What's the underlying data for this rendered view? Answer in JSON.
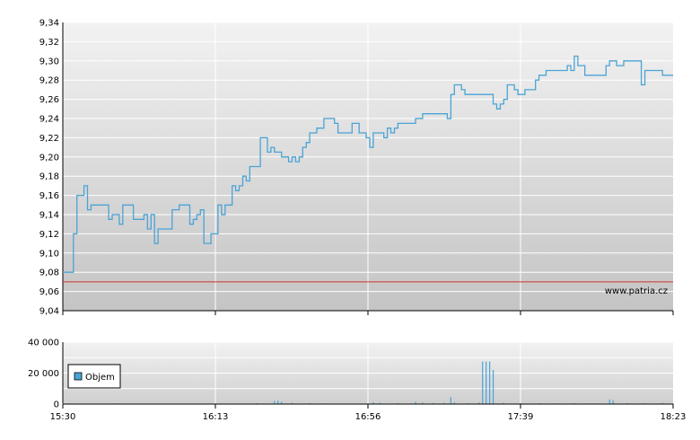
{
  "watermark": "www.patria.cz",
  "colors": {
    "price_line": "#4aa3d6",
    "reference_line": "#cc3333",
    "volume_bars": "#4aa3d6",
    "grid": "#ffffff",
    "plot_top": "#f0f0f0",
    "plot_bottom": "#c8c8c8"
  },
  "chart_data": [
    {
      "type": "line",
      "name": "price-chart",
      "ylim": [
        9.04,
        9.34
      ],
      "xlim": [
        "15:30",
        "18:23"
      ],
      "y_ticks": [
        "9,04",
        "9,06",
        "9,08",
        "9,10",
        "9,12",
        "9,14",
        "9,16",
        "9,18",
        "9,20",
        "9,22",
        "9,24",
        "9,26",
        "9,28",
        "9,30",
        "9,32",
        "9,34"
      ],
      "reference_value": 9.07,
      "grid": true,
      "series": [
        {
          "values_time_minutes": [
            [
              0,
              9.08
            ],
            [
              2,
              9.08
            ],
            [
              3,
              9.12
            ],
            [
              4,
              9.16
            ],
            [
              5,
              9.16
            ],
            [
              6,
              9.17
            ],
            [
              7,
              9.145
            ],
            [
              8,
              9.15
            ],
            [
              12,
              9.15
            ],
            [
              13,
              9.135
            ],
            [
              14,
              9.14
            ],
            [
              15,
              9.14
            ],
            [
              16,
              9.13
            ],
            [
              17,
              9.15
            ],
            [
              19,
              9.15
            ],
            [
              20,
              9.135
            ],
            [
              23,
              9.14
            ],
            [
              24,
              9.125
            ],
            [
              25,
              9.14
            ],
            [
              26,
              9.11
            ],
            [
              27,
              9.125
            ],
            [
              30,
              9.125
            ],
            [
              31,
              9.145
            ],
            [
              33,
              9.15
            ],
            [
              35,
              9.15
            ],
            [
              36,
              9.13
            ],
            [
              37,
              9.135
            ],
            [
              38,
              9.14
            ],
            [
              39,
              9.145
            ],
            [
              40,
              9.11
            ],
            [
              41,
              9.11
            ],
            [
              42,
              9.12
            ],
            [
              44,
              9.15
            ],
            [
              45,
              9.14
            ],
            [
              46,
              9.15
            ],
            [
              48,
              9.17
            ],
            [
              49,
              9.165
            ],
            [
              50,
              9.17
            ],
            [
              51,
              9.18
            ],
            [
              52,
              9.175
            ],
            [
              53,
              9.19
            ],
            [
              55,
              9.19
            ],
            [
              56,
              9.22
            ],
            [
              57,
              9.22
            ],
            [
              58,
              9.205
            ],
            [
              59,
              9.21
            ],
            [
              60,
              9.205
            ],
            [
              62,
              9.2
            ],
            [
              64,
              9.195
            ],
            [
              65,
              9.2
            ],
            [
              66,
              9.195
            ],
            [
              67,
              9.2
            ],
            [
              68,
              9.21
            ],
            [
              69,
              9.215
            ],
            [
              70,
              9.225
            ],
            [
              72,
              9.23
            ],
            [
              74,
              9.24
            ],
            [
              77,
              9.235
            ],
            [
              78,
              9.225
            ],
            [
              81,
              9.225
            ],
            [
              82,
              9.235
            ],
            [
              84,
              9.225
            ],
            [
              86,
              9.22
            ],
            [
              87,
              9.21
            ],
            [
              88,
              9.225
            ],
            [
              90,
              9.225
            ],
            [
              91,
              9.22
            ],
            [
              92,
              9.23
            ],
            [
              93,
              9.225
            ],
            [
              94,
              9.23
            ],
            [
              95,
              9.235
            ],
            [
              99,
              9.235
            ],
            [
              100,
              9.24
            ],
            [
              102,
              9.245
            ],
            [
              108,
              9.245
            ],
            [
              109,
              9.24
            ],
            [
              110,
              9.265
            ],
            [
              111,
              9.275
            ],
            [
              112,
              9.275
            ],
            [
              113,
              9.27
            ],
            [
              114,
              9.265
            ],
            [
              121,
              9.265
            ],
            [
              122,
              9.255
            ],
            [
              123,
              9.25
            ],
            [
              124,
              9.255
            ],
            [
              125,
              9.26
            ],
            [
              126,
              9.275
            ],
            [
              127,
              9.275
            ],
            [
              128,
              9.27
            ],
            [
              129,
              9.265
            ],
            [
              131,
              9.27
            ],
            [
              133,
              9.27
            ],
            [
              134,
              9.28
            ],
            [
              135,
              9.285
            ],
            [
              137,
              9.29
            ],
            [
              142,
              9.29
            ],
            [
              143,
              9.295
            ],
            [
              144,
              9.29
            ],
            [
              145,
              9.305
            ],
            [
              146,
              9.295
            ],
            [
              148,
              9.285
            ],
            [
              153,
              9.285
            ],
            [
              154,
              9.295
            ],
            [
              155,
              9.3
            ],
            [
              157,
              9.295
            ],
            [
              159,
              9.3
            ],
            [
              163,
              9.3
            ],
            [
              164,
              9.275
            ],
            [
              165,
              9.29
            ],
            [
              169,
              9.29
            ],
            [
              170,
              9.285
            ],
            [
              173,
              9.285
            ]
          ]
        }
      ]
    },
    {
      "type": "bar",
      "name": "volume-chart",
      "ylim": [
        0,
        40000
      ],
      "y_ticks": [
        "0",
        "20 000",
        "40 000"
      ],
      "x_ticks": [
        "15:30",
        "16:13",
        "16:56",
        "17:39",
        "18:23"
      ],
      "legend": "top-left",
      "series": [
        {
          "name": "Objem",
          "spikes_time_minutes": [
            [
              0,
              600
            ],
            [
              2,
              400
            ],
            [
              6,
              300
            ],
            [
              10,
              300
            ],
            [
              15,
              400
            ],
            [
              20,
              300
            ],
            [
              28,
              300
            ],
            [
              35,
              200
            ],
            [
              42,
              400
            ],
            [
              48,
              300
            ],
            [
              55,
              500
            ],
            [
              60,
              2000
            ],
            [
              61,
              2200
            ],
            [
              62,
              1500
            ],
            [
              65,
              800
            ],
            [
              70,
              600
            ],
            [
              75,
              400
            ],
            [
              80,
              300
            ],
            [
              88,
              1200
            ],
            [
              90,
              800
            ],
            [
              95,
              600
            ],
            [
              100,
              1500
            ],
            [
              102,
              1000
            ],
            [
              105,
              700
            ],
            [
              108,
              800
            ],
            [
              110,
              4500
            ],
            [
              111,
              1000
            ],
            [
              115,
              500
            ],
            [
              118,
              1000
            ],
            [
              119,
              27500
            ],
            [
              120,
              27500
            ],
            [
              121,
              27500
            ],
            [
              122,
              22000
            ],
            [
              125,
              800
            ],
            [
              130,
              600
            ],
            [
              135,
              500
            ],
            [
              140,
              400
            ],
            [
              145,
              600
            ],
            [
              150,
              500
            ],
            [
              155,
              3000
            ],
            [
              156,
              2500
            ],
            [
              160,
              600
            ],
            [
              165,
              500
            ],
            [
              170,
              800
            ],
            [
              173,
              400
            ]
          ]
        }
      ]
    }
  ]
}
